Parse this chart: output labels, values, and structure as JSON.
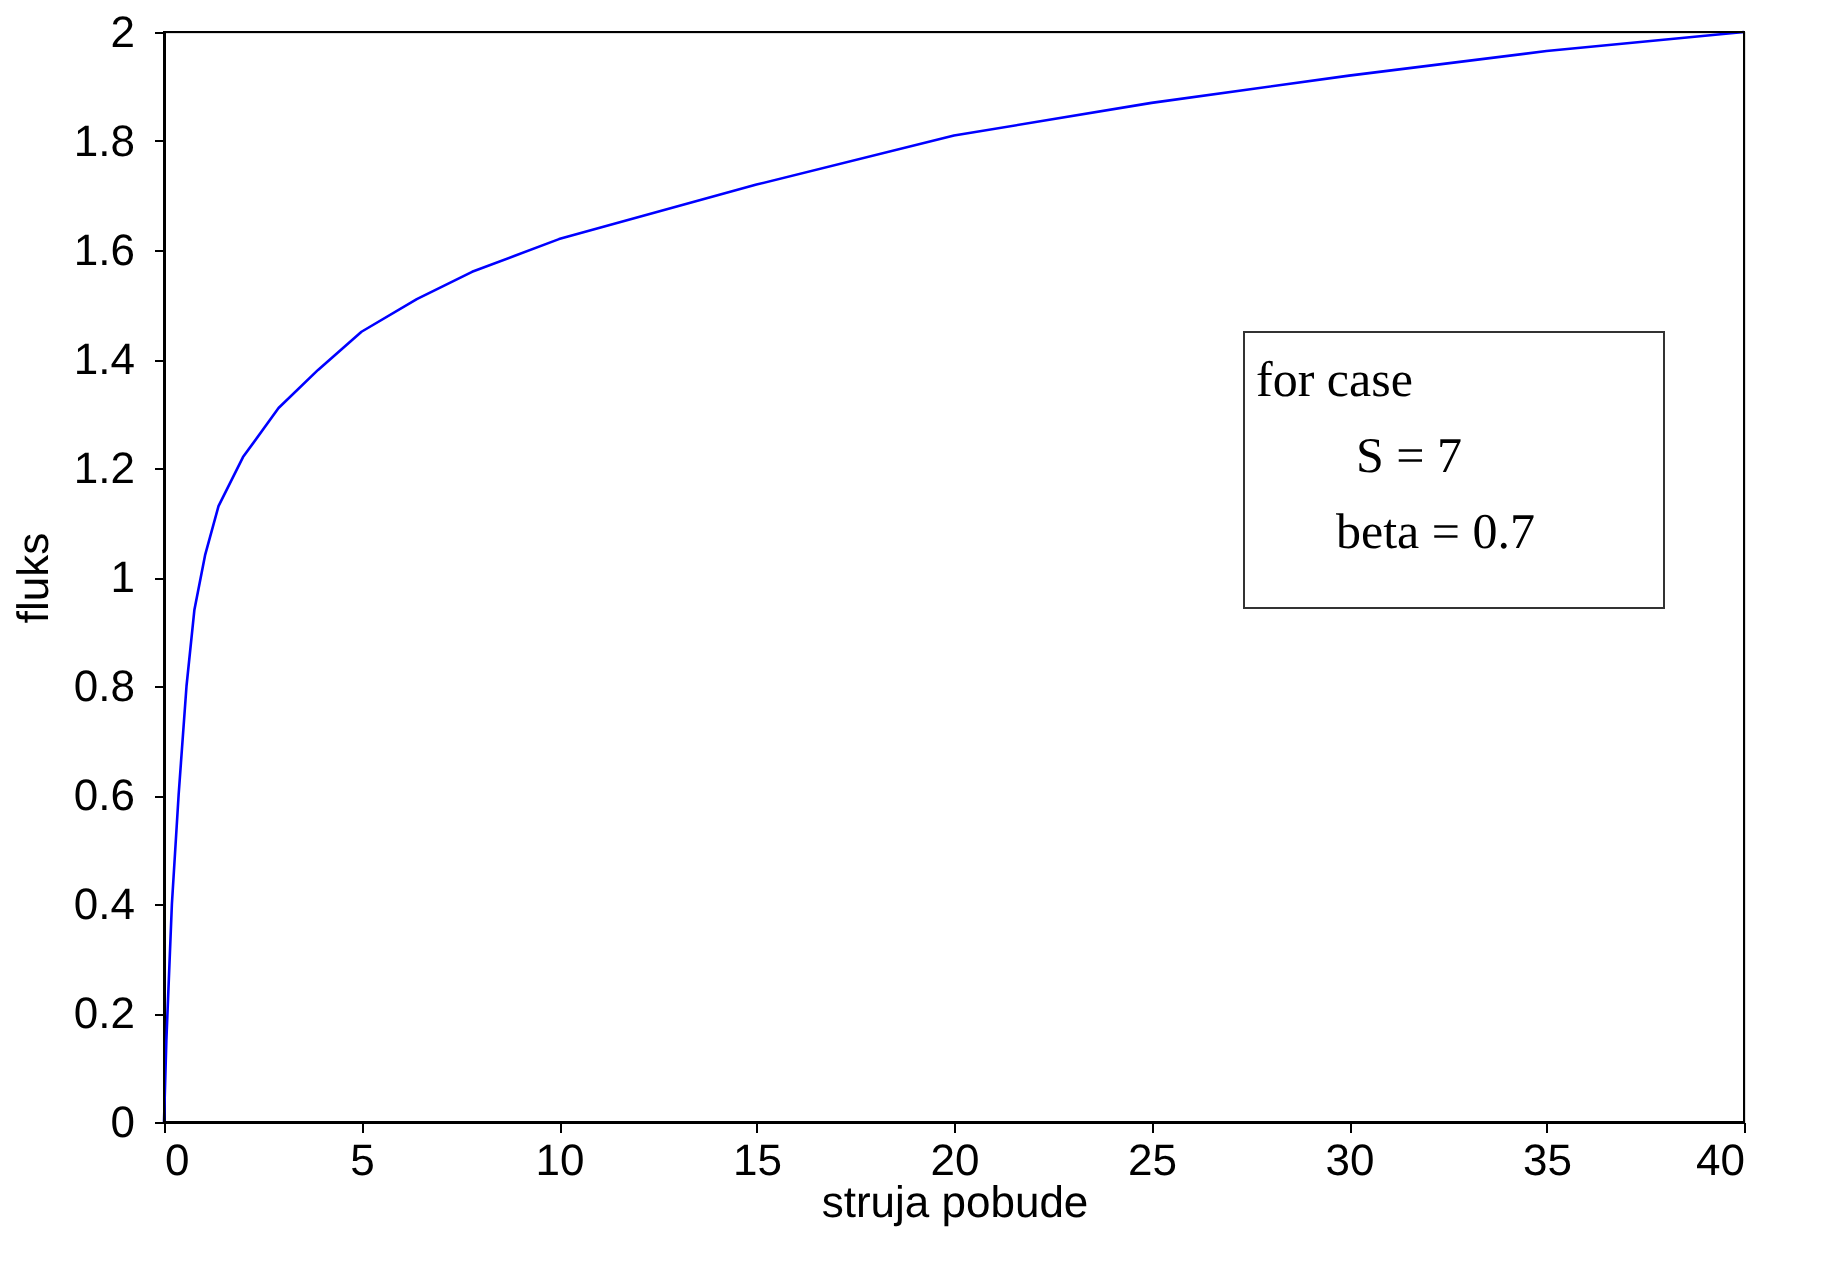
{
  "chart_data": {
    "type": "line",
    "xlabel": "struja pobude",
    "ylabel": "fluks",
    "x": [
      0,
      0.06,
      0.2,
      0.37,
      0.57,
      0.77,
      1.04,
      1.38,
      2.0,
      2.9,
      3.9,
      5.0,
      6.4,
      7.8,
      10,
      15,
      20,
      25,
      30,
      35,
      40
    ],
    "series": [
      {
        "color": "#0000ff",
        "values": [
          0,
          0.15,
          0.4,
          0.6,
          0.8,
          0.94,
          1.04,
          1.13,
          1.22,
          1.31,
          1.38,
          1.45,
          1.51,
          1.56,
          1.62,
          1.72,
          1.81,
          1.87,
          1.92,
          1.965,
          2.0
        ]
      }
    ],
    "xlim": [
      0,
      40
    ],
    "xticks": [
      0,
      5,
      10,
      15,
      20,
      25,
      30,
      35,
      40
    ],
    "ylim": [
      0,
      2
    ],
    "yticks": [
      0,
      0.2,
      0.4,
      0.6,
      0.8,
      1,
      1.2,
      1.4,
      1.6,
      1.8,
      2
    ],
    "annotations": [
      "for case",
      "S = 7",
      "beta = 0.7"
    ],
    "grid": false,
    "marker": "none",
    "line_style": "solid"
  }
}
